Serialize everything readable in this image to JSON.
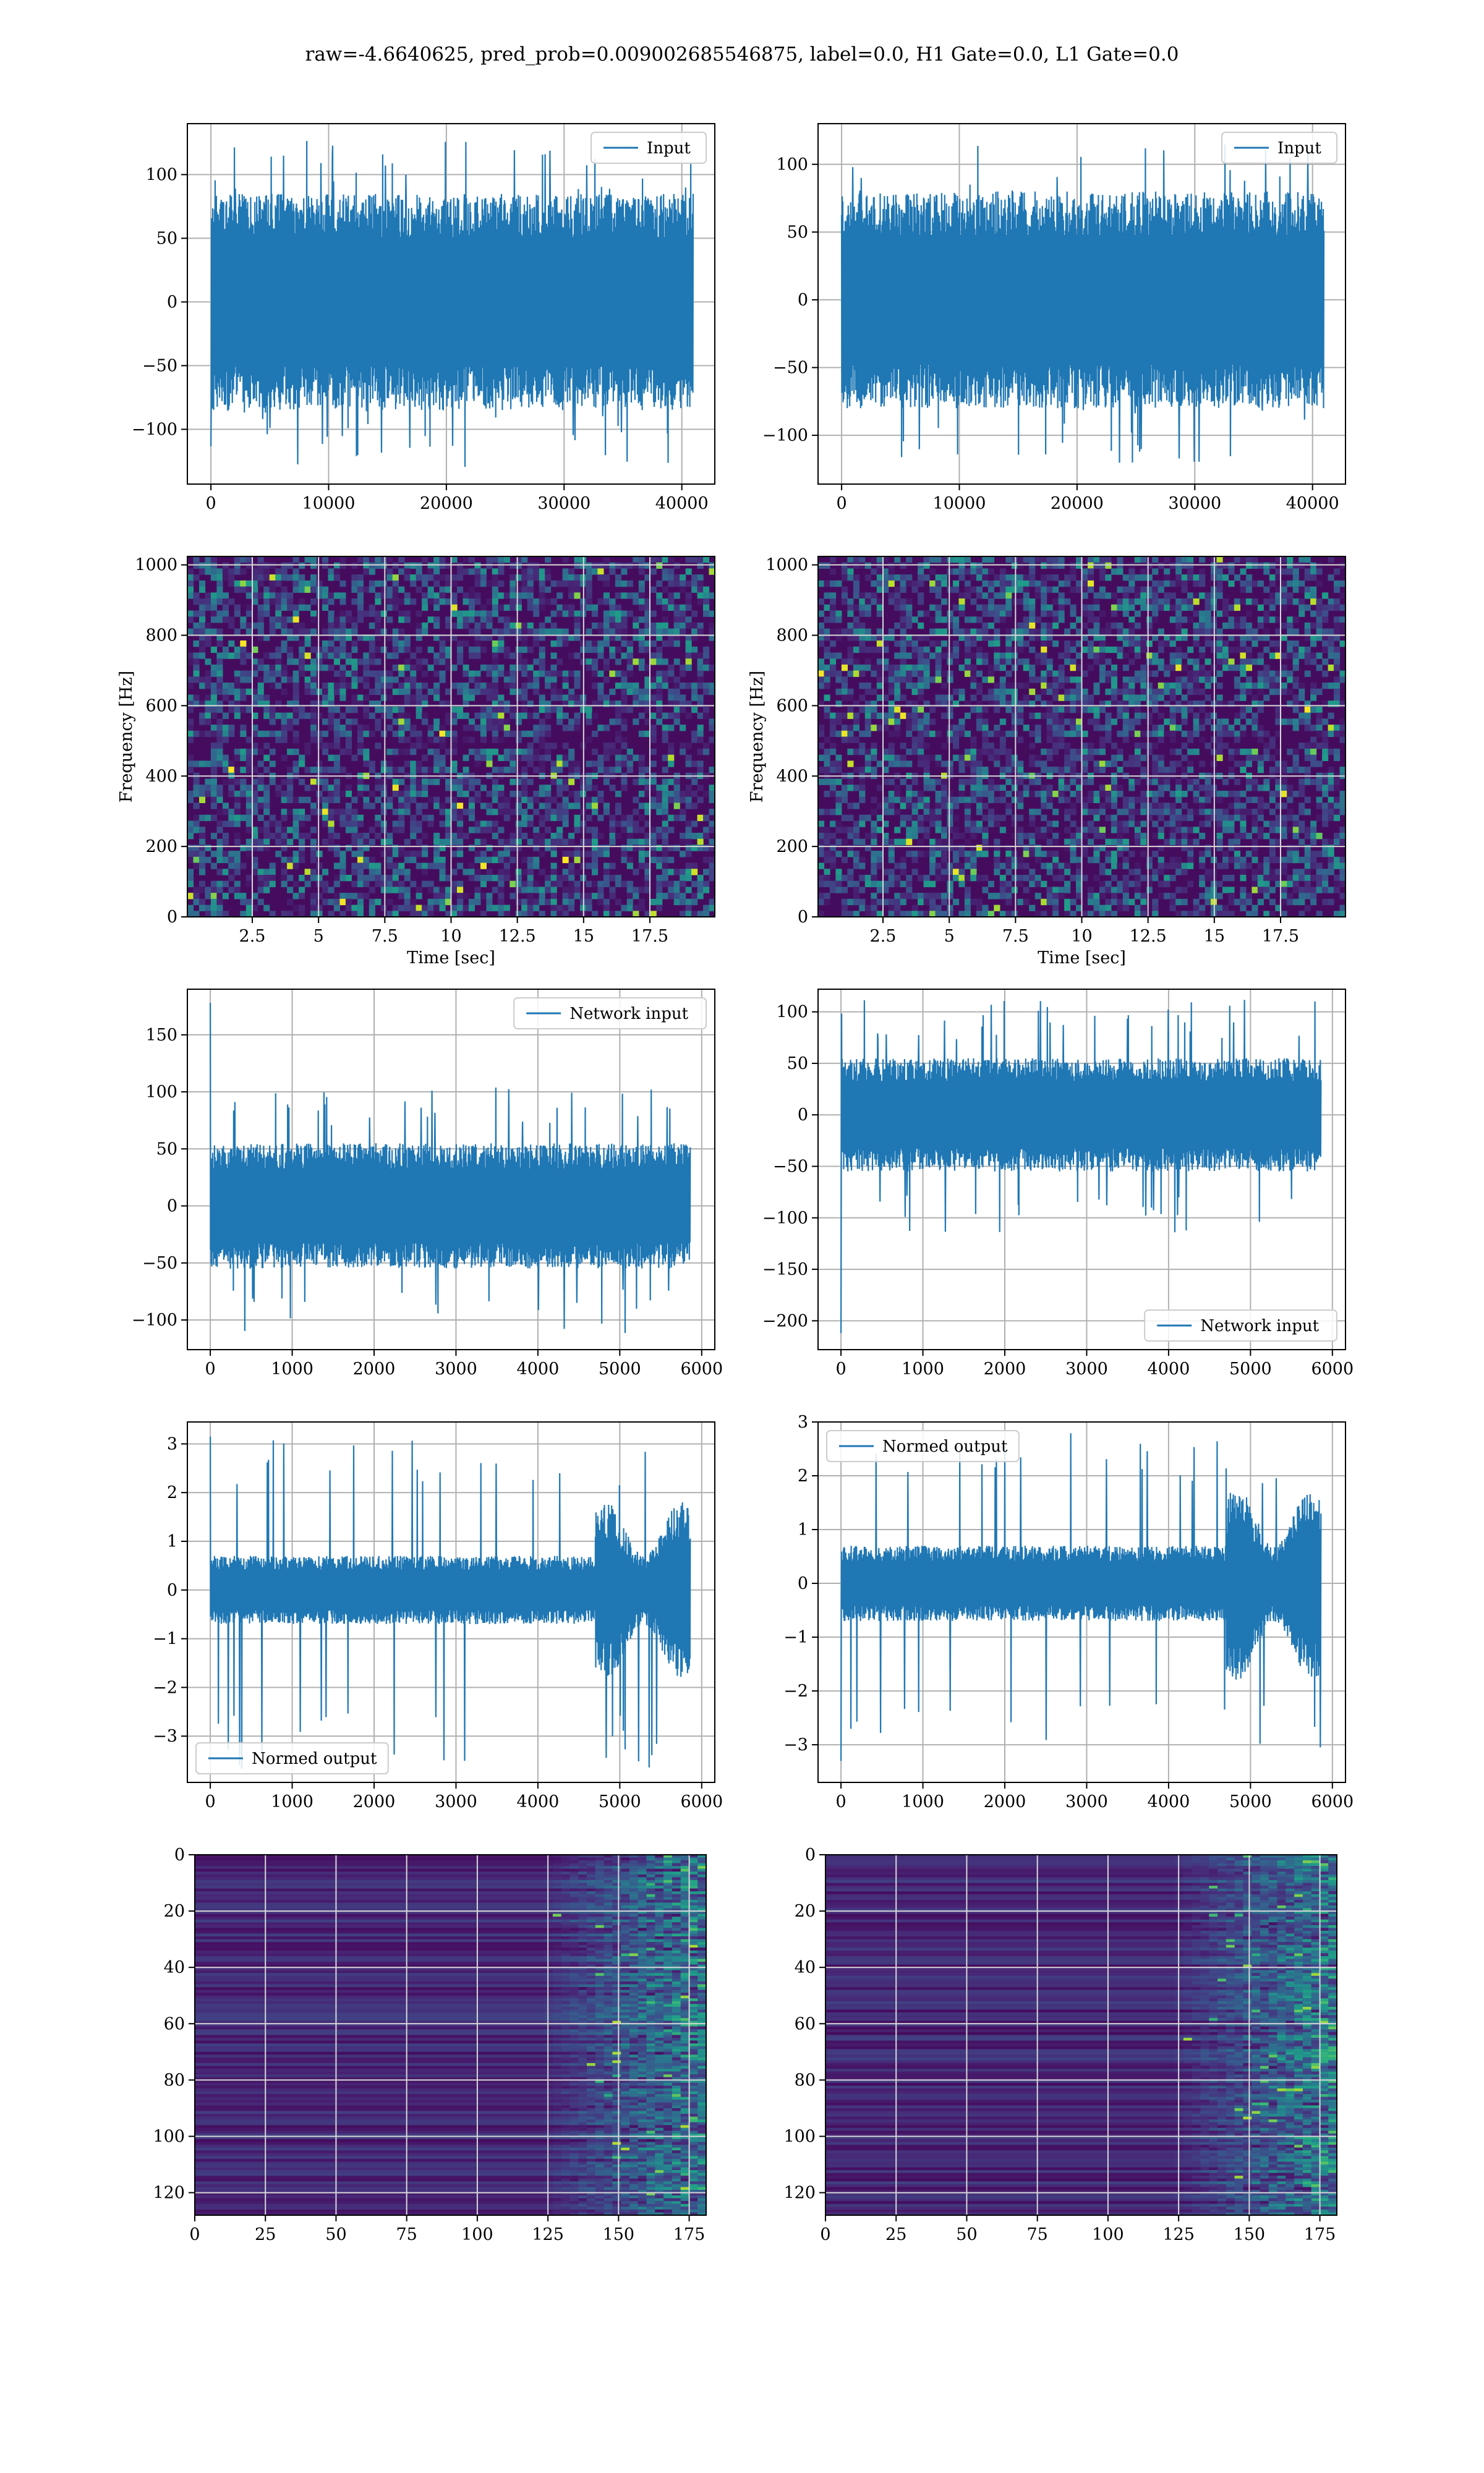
{
  "figure": {
    "suptitle": "raw=-4.6640625, pred_prob=0.009002685546875, label=0.0, H1 Gate=0.0, L1 Gate=0.0"
  },
  "chart_data": [
    {
      "id": "row1-left",
      "type": "line",
      "legend": [
        "Input"
      ],
      "legend_loc": "upper right",
      "xlim": [
        -2000,
        42800
      ],
      "ylim": [
        -143,
        140
      ],
      "xticks": [
        0,
        10000,
        20000,
        30000,
        40000
      ],
      "yticks": [
        -100,
        -50,
        0,
        50,
        100
      ],
      "grid": true,
      "series": [
        {
          "name": "Input",
          "x_range": [
            0,
            40960
          ],
          "envelope": 85,
          "peak_max": 127,
          "peak_min": -130,
          "color": "#1f77b4"
        }
      ]
    },
    {
      "id": "row1-right",
      "type": "line",
      "legend": [
        "Input"
      ],
      "legend_loc": "upper right",
      "xlim": [
        -2000,
        42800
      ],
      "ylim": [
        -136,
        130
      ],
      "xticks": [
        0,
        10000,
        20000,
        30000,
        40000
      ],
      "yticks": [
        -100,
        -50,
        0,
        50,
        100
      ],
      "grid": true,
      "series": [
        {
          "name": "Input",
          "x_range": [
            0,
            40960
          ],
          "envelope": 80,
          "peak_max": 115,
          "peak_min": -122,
          "color": "#1f77b4"
        }
      ]
    },
    {
      "id": "row2-left",
      "type": "heatmap",
      "xlabel": "Time [sec]",
      "ylabel": "Frequency [Hz]",
      "xlim": [
        0.05,
        19.95
      ],
      "ylim": [
        0,
        1024
      ],
      "xticks": [
        2.5,
        5.0,
        7.5,
        10.0,
        12.5,
        15.0,
        17.5
      ],
      "yticks": [
        0,
        200,
        400,
        600,
        800,
        1000
      ],
      "grid": true,
      "colormap": "viridis",
      "dark_band_hz": [
        470,
        520
      ]
    },
    {
      "id": "row2-right",
      "type": "heatmap",
      "xlabel": "Time [sec]",
      "ylabel": "Frequency [Hz]",
      "xlim": [
        0.05,
        19.95
      ],
      "ylim": [
        0,
        1024
      ],
      "xticks": [
        2.5,
        5.0,
        7.5,
        10.0,
        12.5,
        15.0,
        17.5
      ],
      "yticks": [
        0,
        200,
        400,
        600,
        800,
        1000
      ],
      "grid": true,
      "colormap": "viridis",
      "dark_band_hz": [
        470,
        520
      ]
    },
    {
      "id": "row3-left",
      "type": "line",
      "legend": [
        "Network input"
      ],
      "legend_loc": "upper right",
      "xlim": [
        -280,
        6160
      ],
      "ylim": [
        -126,
        190
      ],
      "xticks": [
        0,
        1000,
        2000,
        3000,
        4000,
        5000,
        6000
      ],
      "yticks": [
        -100,
        -50,
        0,
        50,
        100,
        150
      ],
      "grid": true,
      "series": [
        {
          "name": "Network input",
          "x_range": [
            0,
            5860
          ],
          "envelope": 55,
          "spike_start": 178,
          "peak_max": 105,
          "peak_min": -112,
          "color": "#1f77b4"
        }
      ]
    },
    {
      "id": "row3-right",
      "type": "line",
      "legend": [
        "Network input"
      ],
      "legend_loc": "lower right",
      "xlim": [
        -280,
        6160
      ],
      "ylim": [
        -228,
        122
      ],
      "xticks": [
        0,
        1000,
        2000,
        3000,
        4000,
        5000,
        6000
      ],
      "yticks": [
        -200,
        -150,
        -100,
        -50,
        0,
        50,
        100
      ],
      "grid": true,
      "series": [
        {
          "name": "Network input",
          "x_range": [
            0,
            5860
          ],
          "envelope": 55,
          "spike_start": -212,
          "peak_max": 112,
          "peak_min": -118,
          "color": "#1f77b4"
        }
      ]
    },
    {
      "id": "row4-left",
      "type": "line",
      "legend": [
        "Normed output"
      ],
      "legend_loc": "lower left",
      "xlim": [
        -280,
        6160
      ],
      "ylim": [
        -3.95,
        3.45
      ],
      "xticks": [
        0,
        1000,
        2000,
        3000,
        4000,
        5000,
        6000
      ],
      "yticks": [
        -3,
        -2,
        -1,
        0,
        1,
        2,
        3
      ],
      "grid": true,
      "series": [
        {
          "name": "Normed output",
          "x_range": [
            0,
            5860
          ],
          "envelope": 0.7,
          "late_start": 4700,
          "late_envelope": 1.8,
          "spike_start": 3.15,
          "peak_max": 3.3,
          "peak_min": -3.7,
          "color": "#1f77b4"
        }
      ]
    },
    {
      "id": "row4-right",
      "type": "line",
      "legend": [
        "Normed output"
      ],
      "legend_loc": "upper left",
      "xlim": [
        -280,
        6160
      ],
      "ylim": [
        -3.7,
        3.0
      ],
      "xticks": [
        0,
        1000,
        2000,
        3000,
        4000,
        5000,
        6000
      ],
      "yticks": [
        -3,
        -2,
        -1,
        0,
        1,
        2,
        3
      ],
      "grid": true,
      "series": [
        {
          "name": "Normed output",
          "x_range": [
            0,
            5860
          ],
          "envelope": 0.7,
          "late_start": 4700,
          "late_envelope": 1.8,
          "spike_start": -3.3,
          "peak_max": 2.8,
          "peak_min": -3.4,
          "color": "#1f77b4"
        }
      ]
    },
    {
      "id": "row5-left",
      "type": "heatmap",
      "xlim": [
        0,
        181
      ],
      "ylim": [
        128,
        0
      ],
      "xticks": [
        0,
        25,
        50,
        75,
        100,
        125,
        150,
        175
      ],
      "yticks": [
        0,
        20,
        40,
        60,
        80,
        100,
        120
      ],
      "grid": true,
      "colormap": "viridis",
      "active_from_x": 125
    },
    {
      "id": "row5-right",
      "type": "heatmap",
      "xlim": [
        0,
        181
      ],
      "ylim": [
        128,
        0
      ],
      "xticks": [
        0,
        25,
        50,
        75,
        100,
        125,
        150,
        175
      ],
      "yticks": [
        0,
        20,
        40,
        60,
        80,
        100,
        120
      ],
      "grid": true,
      "colormap": "viridis",
      "active_from_x": 125
    }
  ]
}
